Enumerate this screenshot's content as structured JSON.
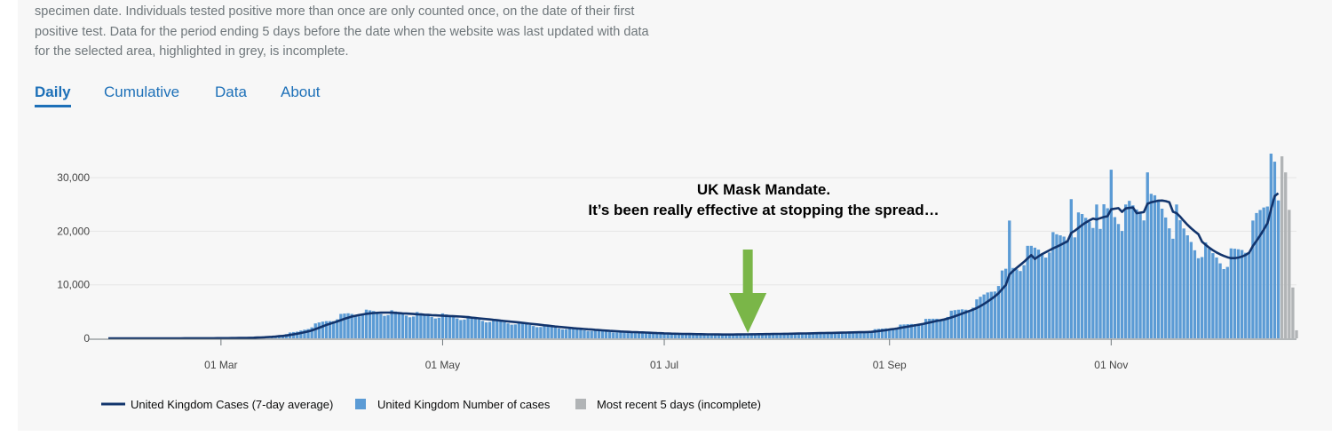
{
  "description": {
    "lines": [
      "specimen date. Individuals tested positive more than once are only counted once, on the date of their first",
      "positive test. Data for the period ending 5 days before the date when the website was last updated with data",
      "for the selected area, highlighted in grey, is incomplete."
    ]
  },
  "tabs": [
    {
      "label": "Daily",
      "active": true
    },
    {
      "label": "Cumulative",
      "active": false
    },
    {
      "label": "Data",
      "active": false
    },
    {
      "label": "About",
      "active": false
    }
  ],
  "colors": {
    "bar": "#5b9bd5",
    "bar_incomplete": "#b1b4b6",
    "line": "#12346c",
    "arrow": "#7ab648",
    "grid": "#e6e6e6"
  },
  "chart_data": {
    "type": "bar",
    "title": "",
    "xlabel": "",
    "ylabel": "",
    "ylim": [
      0,
      35000
    ],
    "xlim": [
      "2020-01-30",
      "2020-12-17"
    ],
    "y_ticks": [
      {
        "value": 0,
        "label": "0"
      },
      {
        "value": 10000,
        "label": "10,000"
      },
      {
        "value": 20000,
        "label": "20,000"
      },
      {
        "value": 30000,
        "label": "30,000"
      }
    ],
    "x_ticks": [
      {
        "date": "2020-03-01",
        "label": "01 Mar"
      },
      {
        "date": "2020-05-01",
        "label": "01 May"
      },
      {
        "date": "2020-07-01",
        "label": "01 Jul"
      },
      {
        "date": "2020-09-01",
        "label": "01 Sep"
      },
      {
        "date": "2020-11-01",
        "label": "01 Nov"
      }
    ],
    "daily_anchors": [
      [
        "2020-01-30",
        0
      ],
      [
        "2020-02-20",
        10
      ],
      [
        "2020-03-01",
        40
      ],
      [
        "2020-03-08",
        120
      ],
      [
        "2020-03-15",
        400
      ],
      [
        "2020-03-22",
        1200
      ],
      [
        "2020-03-29",
        3000
      ],
      [
        "2020-04-05",
        4500
      ],
      [
        "2020-04-12",
        4900
      ],
      [
        "2020-04-19",
        4600
      ],
      [
        "2020-04-26",
        4300
      ],
      [
        "2020-05-03",
        4100
      ],
      [
        "2020-05-10",
        3600
      ],
      [
        "2020-05-20",
        2900
      ],
      [
        "2020-06-01",
        2000
      ],
      [
        "2020-06-15",
        1300
      ],
      [
        "2020-07-01",
        850
      ],
      [
        "2020-07-15",
        700
      ],
      [
        "2020-08-01",
        850
      ],
      [
        "2020-08-15",
        1050
      ],
      [
        "2020-08-25",
        1200
      ],
      [
        "2020-09-05",
        2400
      ],
      [
        "2020-09-15",
        3800
      ],
      [
        "2020-09-25",
        6500
      ],
      [
        "2020-10-03",
        12000
      ],
      [
        "2020-10-10",
        16000
      ],
      [
        "2020-10-17",
        18000
      ],
      [
        "2020-10-24",
        21500
      ],
      [
        "2020-10-31",
        22500
      ],
      [
        "2020-11-07",
        23000
      ],
      [
        "2020-11-14",
        24000
      ],
      [
        "2020-11-21",
        19000
      ],
      [
        "2020-11-28",
        15500
      ],
      [
        "2020-12-03",
        14500
      ],
      [
        "2020-12-08",
        17000
      ],
      [
        "2020-12-13",
        23500
      ],
      [
        "2020-12-17",
        28000
      ]
    ],
    "weekday_pattern": [
      0.92,
      1.12,
      1.08,
      1.04,
      1.0,
      0.94,
      0.88
    ],
    "spikes": [
      [
        "2020-10-03",
        13000
      ],
      [
        "2020-10-04",
        22000
      ],
      [
        "2020-10-21",
        26000
      ],
      [
        "2020-10-28",
        25000
      ],
      [
        "2020-11-01",
        31500
      ],
      [
        "2020-11-05",
        25000
      ],
      [
        "2020-11-11",
        31000
      ],
      [
        "2020-11-12",
        27000
      ],
      [
        "2020-11-19",
        25000
      ],
      [
        "2020-12-10",
        22000
      ],
      [
        "2020-12-15",
        34500
      ],
      [
        "2020-12-16",
        33000
      ]
    ],
    "incomplete": [
      [
        "2020-12-18",
        34000
      ],
      [
        "2020-12-19",
        31000
      ],
      [
        "2020-12-20",
        24000
      ],
      [
        "2020-12-21",
        9500
      ],
      [
        "2020-12-22",
        1500
      ]
    ],
    "legend": [
      {
        "label": "United Kingdom Cases (7-day average)",
        "kind": "line"
      },
      {
        "label": "United Kingdom Number of cases",
        "kind": "bar"
      },
      {
        "label": "Most recent 5 days (incomplete)",
        "kind": "bar_incomplete"
      }
    ],
    "annotation": {
      "lines": [
        "UK Mask Mandate.",
        "It’s been really effective at stopping the spread…"
      ],
      "arrow_date": "2020-07-24"
    }
  }
}
